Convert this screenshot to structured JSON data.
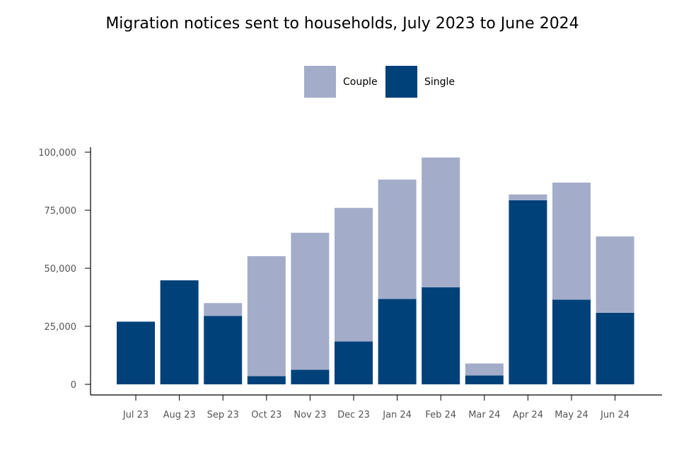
{
  "chart_data": {
    "type": "bar",
    "stacked": true,
    "title": "Migration notices sent to households, July 2023 to June 2024",
    "xlabel": "",
    "ylabel": "",
    "ylim": [
      0,
      100000
    ],
    "yticks": [
      0,
      25000,
      50000,
      75000,
      100000
    ],
    "ytick_labels": [
      "0",
      "25,000",
      "50,000",
      "75,000",
      "100,000"
    ],
    "grid": false,
    "legend_position": "top-center",
    "categories": [
      "Jul 23",
      "Aug 23",
      "Sep 23",
      "Oct 23",
      "Nov 23",
      "Dec 23",
      "Jan 24",
      "Feb 24",
      "Mar 24",
      "Apr 24",
      "May 24",
      "Jun 24"
    ],
    "series": [
      {
        "name": "Single",
        "color": "#00417a",
        "values": [
          27000,
          44800,
          29500,
          3500,
          6300,
          18500,
          36800,
          41800,
          3800,
          79300,
          36500,
          30800
        ]
      },
      {
        "name": "Couple",
        "color": "#a3adca",
        "values": [
          0,
          0,
          5500,
          51700,
          59000,
          57500,
          51400,
          55900,
          5200,
          2500,
          50400,
          32900
        ]
      }
    ],
    "legend_order": [
      "Couple",
      "Single"
    ]
  }
}
